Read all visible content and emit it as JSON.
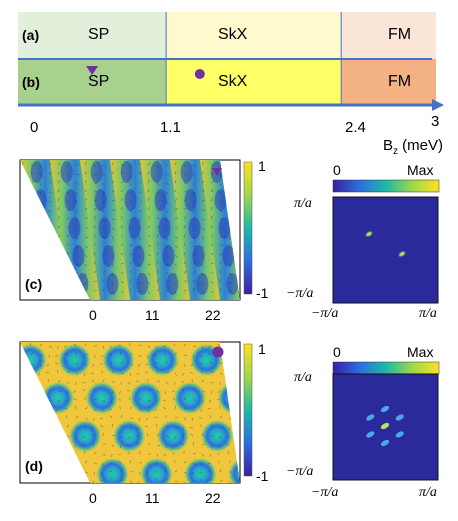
{
  "phase_rows": [
    {
      "tag": "(a)",
      "phases": [
        "SP",
        "SkX",
        "FM"
      ],
      "colors": [
        "#e2efda",
        "#fffacd",
        "#fbe5d6"
      ]
    },
    {
      "tag": "(b)",
      "phases": [
        "SP",
        "SkX",
        "FM"
      ],
      "colors": [
        "#a9d18e",
        "#ffff66",
        "#f4b183"
      ]
    }
  ],
  "axis": {
    "ticks": [
      "0",
      "1.1",
      "2.4",
      "3"
    ],
    "tick_values": [
      0,
      1.1,
      2.4,
      3
    ],
    "label_main": "B",
    "label_sub": "z",
    "label_unit": " (meV)",
    "boundaries": [
      1.1,
      2.4
    ],
    "max": 3,
    "color": "#4472c4"
  },
  "markers": {
    "triangle_color": "#7030a0",
    "circle_color": "#7030a0",
    "triangle_bz": 0.55,
    "circle_bz": 1.35
  },
  "panel_c": {
    "tag": "(c)",
    "x_ticks": [
      "0",
      "11",
      "22"
    ],
    "colorbar_ticks": [
      "1",
      "-1"
    ],
    "marker": "triangle"
  },
  "panel_d": {
    "tag": "(d)",
    "x_ticks": [
      "0",
      "11",
      "22"
    ],
    "colorbar_ticks": [
      "1",
      "-1"
    ],
    "marker": "circle"
  },
  "fourier_c": {
    "scale_min": "0",
    "scale_max": "Max",
    "y_top": "π/a",
    "y_bottom": "−π/a",
    "x_left": "−π/a",
    "x_right": "π/a"
  },
  "fourier_d": {
    "scale_min": "0",
    "scale_max": "Max",
    "y_top": "π/a",
    "y_bottom": "−π/a",
    "x_left": "−π/a",
    "x_right": "π/a"
  }
}
